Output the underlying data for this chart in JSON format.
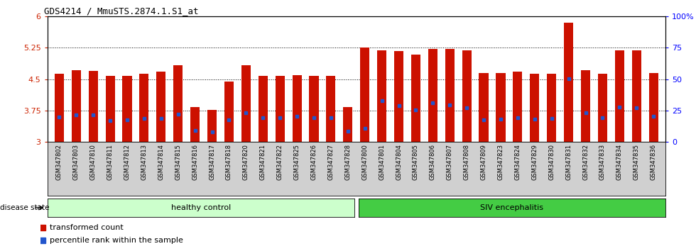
{
  "title": "GDS4214 / MmuSTS.2874.1.S1_at",
  "samples": [
    "GSM347802",
    "GSM347803",
    "GSM347810",
    "GSM347811",
    "GSM347812",
    "GSM347813",
    "GSM347814",
    "GSM347815",
    "GSM347816",
    "GSM347817",
    "GSM347818",
    "GSM347820",
    "GSM347821",
    "GSM347822",
    "GSM347825",
    "GSM347826",
    "GSM347827",
    "GSM347828",
    "GSM347800",
    "GSM347801",
    "GSM347804",
    "GSM347805",
    "GSM347806",
    "GSM347807",
    "GSM347808",
    "GSM347809",
    "GSM347823",
    "GSM347824",
    "GSM347829",
    "GSM347830",
    "GSM347831",
    "GSM347832",
    "GSM347833",
    "GSM347834",
    "GSM347835",
    "GSM347836"
  ],
  "bar_values": [
    4.62,
    4.72,
    4.7,
    4.58,
    4.58,
    4.62,
    4.68,
    4.83,
    3.83,
    3.77,
    4.44,
    4.83,
    4.57,
    4.57,
    4.6,
    4.57,
    4.57,
    3.83,
    5.25,
    5.18,
    5.17,
    5.08,
    5.22,
    5.22,
    5.19,
    4.65,
    4.65,
    4.68,
    4.63,
    4.63,
    5.85,
    4.72,
    4.63,
    5.18,
    5.18,
    4.65
  ],
  "percentile_fractions": [
    0.37,
    0.37,
    0.38,
    0.32,
    0.33,
    0.35,
    0.33,
    0.36,
    0.32,
    0.31,
    0.37,
    0.38,
    0.37,
    0.37,
    0.38,
    0.37,
    0.37,
    0.31,
    0.14,
    0.45,
    0.4,
    0.37,
    0.42,
    0.4,
    0.37,
    0.32,
    0.33,
    0.34,
    0.33,
    0.34,
    0.53,
    0.4,
    0.35,
    0.38,
    0.37,
    0.37
  ],
  "healthy_count": 18,
  "ylim_left": [
    3.0,
    6.0
  ],
  "ylim_right": [
    0,
    100
  ],
  "yticks_left": [
    3.0,
    3.75,
    4.5,
    5.25,
    6.0
  ],
  "ytick_labels_left": [
    "3",
    "3.75",
    "4.5",
    "5.25",
    "6"
  ],
  "yticks_right": [
    0,
    25,
    50,
    75,
    100
  ],
  "ytick_labels_right": [
    "0",
    "25",
    "50",
    "75",
    "100%"
  ],
  "bar_color": "#cc1100",
  "percentile_color": "#2255cc",
  "healthy_color": "#ccffcc",
  "siv_color": "#44cc44",
  "background_color": "#ffffff",
  "xtick_bg_color": "#d0d0d0",
  "bar_width": 0.55,
  "base_value": 3.0,
  "grid_yticks": [
    3.75,
    4.5,
    5.25
  ]
}
